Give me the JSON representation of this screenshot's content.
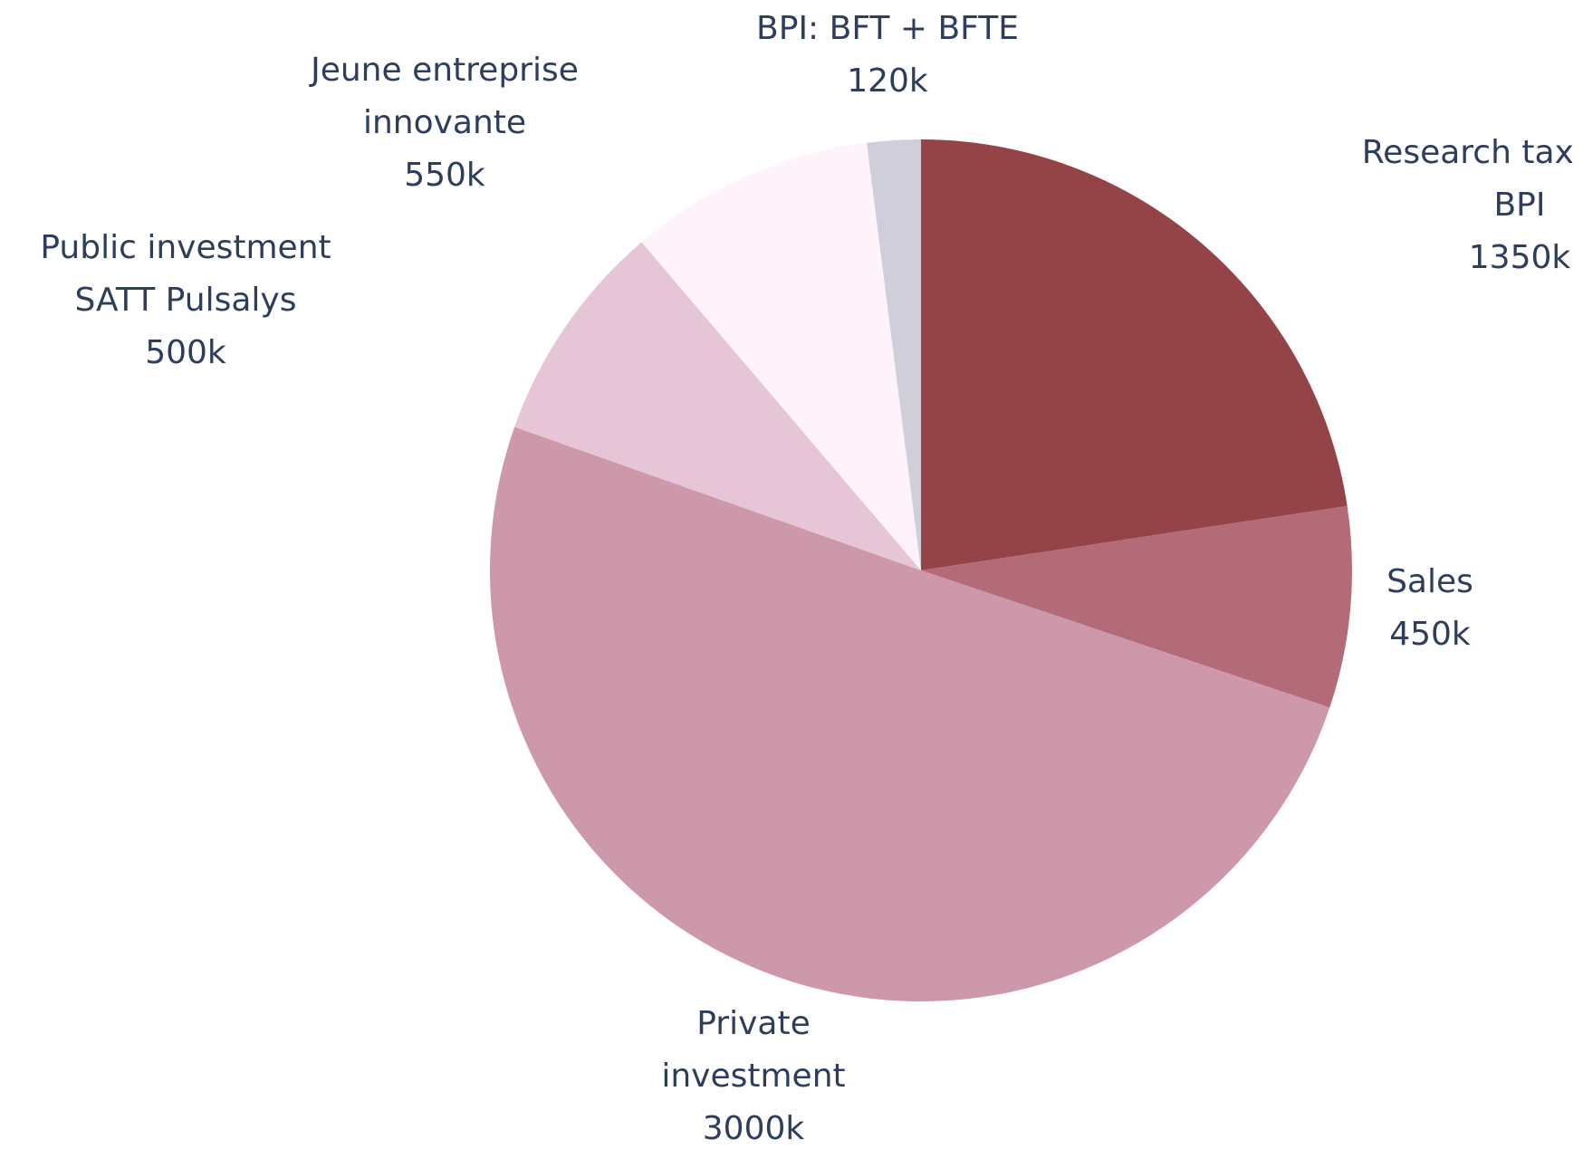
{
  "chart_data": {
    "type": "pie",
    "categories": [
      [
        "Research tax credit",
        "BPI"
      ],
      [
        "Sales"
      ],
      [
        "Private",
        "investment"
      ],
      [
        "Public investment",
        "SATT Pulsalys"
      ],
      [
        "Jeune entreprise",
        "innovante"
      ],
      [
        "BPI: BFT + BFTE"
      ]
    ],
    "values": [
      1350,
      450,
      3000,
      500,
      550,
      120
    ],
    "value_labels": [
      "1350k",
      "450k",
      "3000k",
      "500k",
      "550k",
      "120k"
    ],
    "colors": [
      "#944346",
      "#b36b78",
      "#cc98aa",
      "#e5c5d6",
      "#fff3fb",
      "#d0ced8"
    ]
  }
}
